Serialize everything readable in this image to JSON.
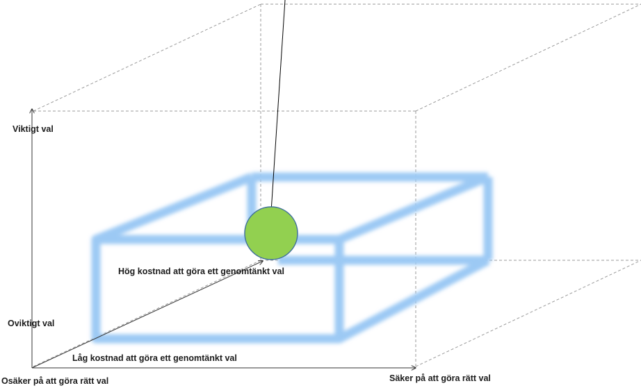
{
  "labels": {
    "important_choice": "Viktigt val",
    "unimportant_choice": "Oviktigt val",
    "uncertain": "Osäker på att göra rätt val",
    "certain": "Säker på att göra rätt val",
    "low_cost": "Låg kostnad att göra ett genomtänkt val",
    "high_cost": "Hög kostnad att göra ett genomtänkt val"
  },
  "colors": {
    "axis": "#333333",
    "dashed_box": "#9a9a9a",
    "highlight_box": "#9cc9f4",
    "ball_fill": "#92d050",
    "ball_stroke": "#41719c",
    "pendulum": "#000000"
  }
}
